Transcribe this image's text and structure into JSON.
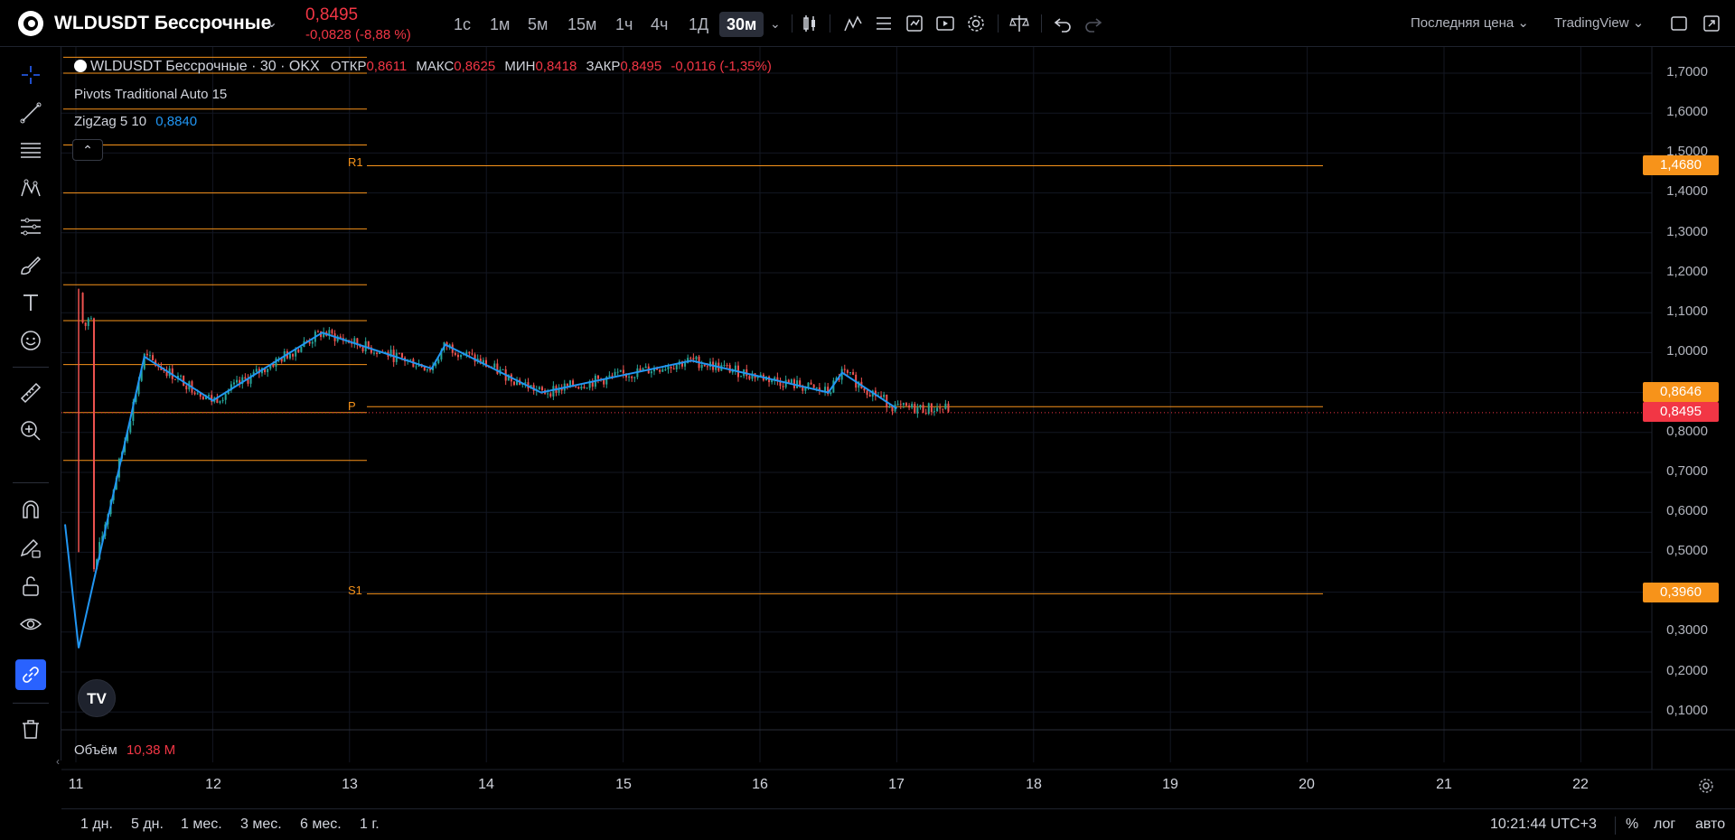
{
  "header": {
    "symbol": "WLDUSDT Бессрочные",
    "price": "0,8495",
    "change": "-0,0828 (-8,88 %)",
    "timeframes": [
      "1с",
      "1м",
      "5м",
      "15м",
      "1ч",
      "4ч",
      "1Д",
      "30м"
    ],
    "active_timeframe": "30м",
    "price_type": "Последняя цена",
    "broker": "TradingView"
  },
  "legend": {
    "title": "WLDUSDT Бессрочные · 30 · OKX",
    "open_label": "ОТКР",
    "open": "0,8611",
    "high_label": "МАКС",
    "high": "0,8625",
    "low_label": "МИН",
    "low": "0,8418",
    "close_label": "ЗАКР",
    "close": "0,8495",
    "change": "-0,0116 (-1,35%)",
    "pivots": "Pivots Traditional Auto 15",
    "zigzag": "ZigZag 5 10",
    "zigzag_value": "0,8840",
    "volume_label": "Объём",
    "volume_value": "10,38 M"
  },
  "pivot_labels": {
    "r1": "R1",
    "p": "P",
    "s1": "S1"
  },
  "price_axis": [
    "1,7000",
    "1,6000",
    "1,5000",
    "1,4000",
    "1,3000",
    "1,2000",
    "1,1000",
    "1,0000",
    "0,8000",
    "0,7000",
    "0,6000",
    "0,5000",
    "0,3000",
    "0,2000",
    "0,1000"
  ],
  "price_tags": {
    "r1": "1,4680",
    "p": "0,8646",
    "last": "0,8495",
    "s1": "0,3960"
  },
  "time_axis": [
    "11",
    "12",
    "13",
    "14",
    "15",
    "16",
    "17",
    "18",
    "19",
    "20",
    "21",
    "22"
  ],
  "ranges": [
    "1 дн.",
    "5 дн.",
    "1 мес.",
    "3 мес.",
    "6 мес.",
    "1 г."
  ],
  "footer": {
    "clock": "10:21:44 UTC+3",
    "percent": "%",
    "log": "лог",
    "auto": "авто"
  },
  "badge": "TV",
  "colors": {
    "pivot": "#f7931a",
    "zigzag": "#2196f3",
    "up": "#26a69a",
    "down": "#ef5350",
    "last": "#f23645"
  },
  "chart_data": {
    "type": "line",
    "series": [
      {
        "name": "ZigZag 5 10",
        "x": [
          "11",
          "11",
          "11.5",
          "12",
          "12.8",
          "13.6",
          "13.7",
          "14.4",
          "15.5",
          "16.5",
          "16.6",
          "17"
        ],
        "values": [
          0.57,
          0.26,
          0.99,
          0.88,
          1.05,
          0.96,
          1.02,
          0.9,
          0.98,
          0.9,
          0.95,
          0.86
        ]
      }
    ],
    "pivots": {
      "R1": 1.468,
      "P": 0.8646,
      "S1": 0.396
    },
    "last_price": 0.8495,
    "ylim": [
      0.05,
      1.75
    ],
    "x_ticks": [
      "11",
      "12",
      "13",
      "14",
      "15",
      "16",
      "17",
      "18",
      "19",
      "20",
      "21",
      "22"
    ],
    "grid": true
  }
}
